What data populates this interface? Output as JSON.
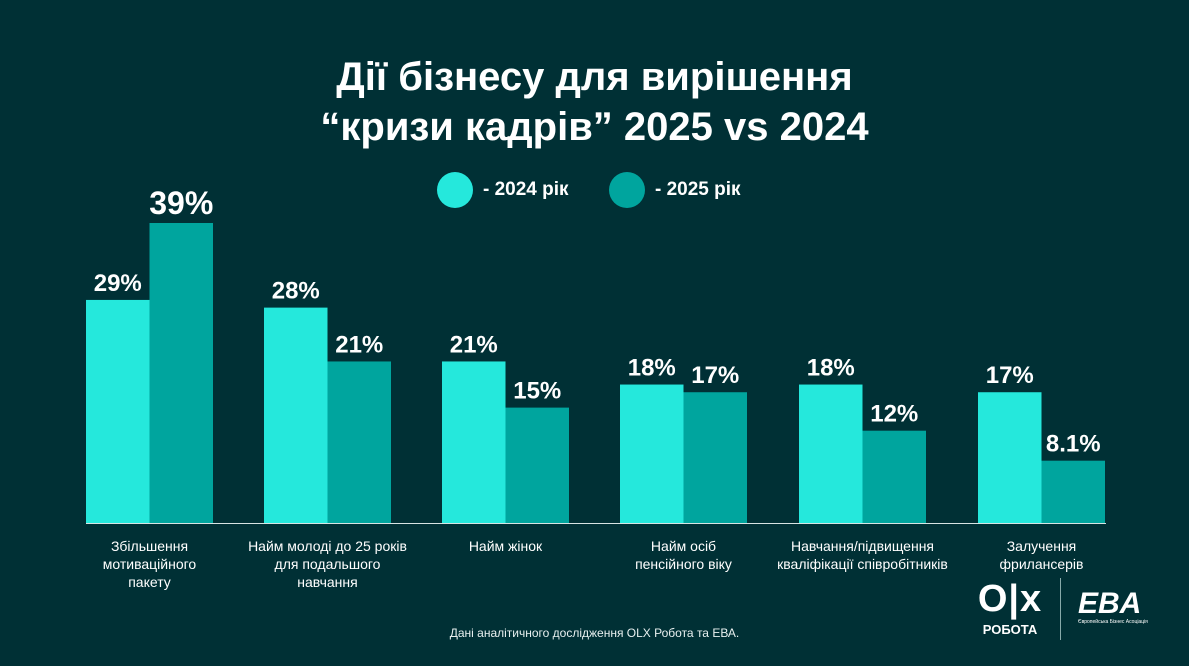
{
  "title_line1": "Дії бізнесу для вирішення",
  "title_line2": "“кризи кадрів” 2025 vs 2024",
  "source": "Дані аналітичного дослідження OLX Робота та ЕВА.",
  "logos": {
    "olx": "OLX",
    "olx_sub": "РОБОТА",
    "eba": "EBA",
    "eba_sub": "Європейська Бізнес Асоціація"
  },
  "colors": {
    "background": "#003035",
    "s2024": "#25E8DC",
    "s2025": "#00A59E"
  },
  "chart_data": {
    "type": "bar",
    "title": "Дії бізнесу для вирішення “кризи кадрів” 2025 vs 2024",
    "categories": [
      [
        "Збільшення",
        "мотиваційного",
        "пакету"
      ],
      [
        "Найм молоді до 25 років",
        "для подальшого",
        "навчання"
      ],
      [
        "Найм жінок"
      ],
      [
        "Найм осіб",
        "пенсійного віку"
      ],
      [
        "Навчання/підвищення",
        "кваліфікації співробітників"
      ],
      [
        "Залучення",
        "фрилансерів"
      ]
    ],
    "series": [
      {
        "name": "- 2024 рік",
        "values": [
          29,
          28,
          21,
          18,
          18,
          17
        ],
        "labels": [
          "29%",
          "28%",
          "21%",
          "18%",
          "18%",
          "17%"
        ]
      },
      {
        "name": "- 2025 рік",
        "values": [
          39,
          21,
          15,
          17,
          12,
          8.1
        ],
        "labels": [
          "39%",
          "21%",
          "15%",
          "17%",
          "12%",
          "8.1%"
        ]
      }
    ],
    "ylim": [
      0,
      39
    ],
    "legend": "top-center",
    "grid": false
  }
}
